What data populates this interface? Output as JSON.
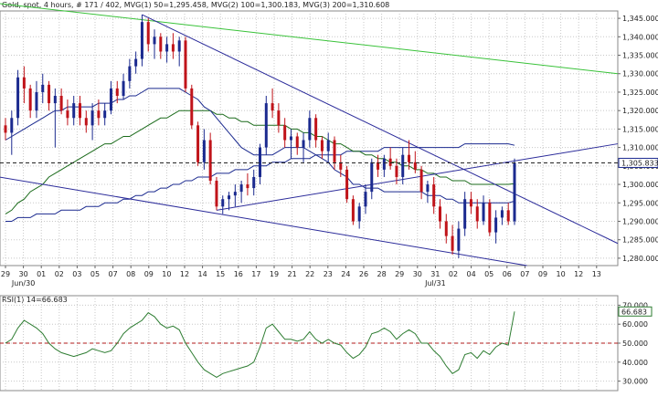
{
  "header": {
    "instrument": "Gold, spot",
    "timeframe": "4 hours",
    "bar_index": "# 171 / 402",
    "mvg1": "MVG(1) 50=1,295.458",
    "mvg2": "MVG(2) 100=1,300.183",
    "mvg3": "MVG(3) 200=1,310.608"
  },
  "rsi_header": "RSI(1) 14=66.683",
  "colors": {
    "up": "#1b2a8f",
    "down": "#c0141a",
    "mvg1": "#1b2a8f",
    "mvg2": "#1b6b1b",
    "mvg3": "#1b2a8f",
    "trend_upper_green": "#39c239",
    "trend_blue": "#2b2b9a",
    "rsi_line": "#2e7d32",
    "ref_line": "#b01818",
    "grid": "#c8c8c8"
  },
  "chart_data": [
    {
      "type": "candlestick",
      "title": "",
      "y_ticks": [
        "1,345.000",
        "1,340.000",
        "1,335.000",
        "1,330.000",
        "1,325.000",
        "1,320.000",
        "1,315.000",
        "1,310.000",
        "1,305.000",
        "1,300.000",
        "1,295.000",
        "1,290.000",
        "1,285.000",
        "1,280.000"
      ],
      "y_range": [
        1278,
        1347
      ],
      "x_ticks": [
        "29",
        "30",
        "01",
        "02",
        "03",
        "05",
        "07",
        "08",
        "09",
        "10",
        "12",
        "14",
        "15",
        "16",
        "17",
        "19",
        "21",
        "22",
        "23",
        "24",
        "26",
        "28",
        "29",
        "30",
        "31",
        "02",
        "04",
        "05",
        "06",
        "07",
        "09",
        "10",
        "12",
        "13"
      ],
      "month_labels": [
        {
          "label": "Jun/30",
          "after_tick": 1
        },
        {
          "label": "Jul/31",
          "after_tick": 24
        }
      ],
      "last_price_label": "1,305.833",
      "last_price": 1305.833,
      "candles": [
        [
          1316,
          1318,
          1312,
          1314
        ],
        [
          1314,
          1320,
          1308,
          1318
        ],
        [
          1318,
          1331,
          1316,
          1329
        ],
        [
          1329,
          1332,
          1322,
          1326
        ],
        [
          1326,
          1327,
          1318,
          1320
        ],
        [
          1320,
          1328,
          1318,
          1325
        ],
        [
          1325,
          1330,
          1322,
          1327
        ],
        [
          1327,
          1328,
          1320,
          1322
        ],
        [
          1322,
          1326,
          1310,
          1324
        ],
        [
          1324,
          1326,
          1319,
          1320
        ],
        [
          1320,
          1323,
          1316,
          1318
        ],
        [
          1318,
          1324,
          1316,
          1322
        ],
        [
          1322,
          1324,
          1316,
          1318
        ],
        [
          1318,
          1320,
          1314,
          1316
        ],
        [
          1316,
          1322,
          1312,
          1320
        ],
        [
          1320,
          1323,
          1316,
          1318
        ],
        [
          1318,
          1322,
          1316,
          1320
        ],
        [
          1320,
          1328,
          1319,
          1326
        ],
        [
          1326,
          1328,
          1322,
          1324
        ],
        [
          1324,
          1330,
          1323,
          1328
        ],
        [
          1328,
          1334,
          1326,
          1332
        ],
        [
          1332,
          1336,
          1330,
          1334
        ],
        [
          1334,
          1346,
          1332,
          1344
        ],
        [
          1344,
          1345,
          1336,
          1338
        ],
        [
          1338,
          1342,
          1334,
          1340
        ],
        [
          1340,
          1341,
          1334,
          1336
        ],
        [
          1336,
          1340,
          1333,
          1338
        ],
        [
          1338,
          1341,
          1334,
          1336
        ],
        [
          1336,
          1340,
          1332,
          1339
        ],
        [
          1339,
          1340,
          1325,
          1326
        ],
        [
          1326,
          1327,
          1315,
          1316
        ],
        [
          1316,
          1317,
          1305,
          1306
        ],
        [
          1306,
          1315,
          1304,
          1312
        ],
        [
          1312,
          1314,
          1300,
          1301
        ],
        [
          1301,
          1302,
          1293,
          1294
        ],
        [
          1294,
          1297,
          1292,
          1296
        ],
        [
          1296,
          1298,
          1293,
          1297
        ],
        [
          1297,
          1300,
          1294,
          1298
        ],
        [
          1298,
          1301,
          1295,
          1300
        ],
        [
          1300,
          1303,
          1297,
          1299
        ],
        [
          1299,
          1304,
          1297,
          1302
        ],
        [
          1302,
          1311,
          1300,
          1310
        ],
        [
          1310,
          1324,
          1308,
          1322
        ],
        [
          1322,
          1326,
          1318,
          1320
        ],
        [
          1320,
          1322,
          1314,
          1316
        ],
        [
          1316,
          1318,
          1310,
          1312
        ],
        [
          1312,
          1315,
          1307,
          1313
        ],
        [
          1313,
          1314,
          1308,
          1310
        ],
        [
          1310,
          1314,
          1306,
          1312
        ],
        [
          1312,
          1320,
          1310,
          1318
        ],
        [
          1318,
          1319,
          1310,
          1312
        ],
        [
          1312,
          1313,
          1307,
          1309
        ],
        [
          1309,
          1314,
          1306,
          1312
        ],
        [
          1312,
          1313,
          1304,
          1306
        ],
        [
          1306,
          1308,
          1302,
          1304
        ],
        [
          1304,
          1305,
          1295,
          1296
        ],
        [
          1296,
          1297,
          1289,
          1290
        ],
        [
          1290,
          1295,
          1288,
          1294
        ],
        [
          1294,
          1300,
          1292,
          1298
        ],
        [
          1298,
          1307,
          1296,
          1306
        ],
        [
          1306,
          1308,
          1302,
          1304
        ],
        [
          1304,
          1308,
          1302,
          1307
        ],
        [
          1307,
          1310,
          1304,
          1305
        ],
        [
          1305,
          1307,
          1300,
          1302
        ],
        [
          1302,
          1310,
          1300,
          1308
        ],
        [
          1308,
          1312,
          1304,
          1306
        ],
        [
          1306,
          1309,
          1303,
          1304
        ],
        [
          1304,
          1305,
          1296,
          1298
        ],
        [
          1298,
          1301,
          1295,
          1300
        ],
        [
          1300,
          1302,
          1292,
          1294
        ],
        [
          1294,
          1296,
          1288,
          1290
        ],
        [
          1290,
          1292,
          1284,
          1286
        ],
        [
          1286,
          1289,
          1281,
          1282
        ],
        [
          1282,
          1290,
          1280,
          1288
        ],
        [
          1288,
          1298,
          1286,
          1296
        ],
        [
          1296,
          1298,
          1292,
          1294
        ],
        [
          1294,
          1296,
          1288,
          1290
        ],
        [
          1290,
          1297,
          1289,
          1295
        ],
        [
          1295,
          1296,
          1286,
          1287
        ],
        [
          1287,
          1293,
          1284,
          1291
        ],
        [
          1291,
          1294,
          1289,
          1293
        ],
        [
          1293,
          1295,
          1289,
          1290
        ],
        [
          1290,
          1307,
          1289,
          1305.833
        ]
      ],
      "mvg1_50": [
        1312,
        1313,
        1314,
        1315,
        1316,
        1317,
        1318,
        1319,
        1320,
        1320,
        1321,
        1321,
        1321,
        1321,
        1321,
        1322,
        1322,
        1322,
        1323,
        1323,
        1324,
        1324,
        1325,
        1326,
        1326,
        1326,
        1326,
        1326,
        1326,
        1325,
        1324,
        1323,
        1321,
        1320,
        1318,
        1316,
        1314,
        1312,
        1310,
        1309,
        1308,
        1308,
        1308,
        1308,
        1309,
        1310,
        1310,
        1310,
        1310,
        1309,
        1308,
        1307,
        1306,
        1304,
        1303,
        1302,
        1300,
        1300,
        1299,
        1299,
        1299,
        1298,
        1298,
        1298,
        1298,
        1298,
        1298,
        1298,
        1297,
        1297,
        1297,
        1296,
        1296,
        1295,
        1295,
        1295,
        1295,
        1295,
        1295,
        1295,
        1295,
        1295,
        1295.458
      ],
      "mvg2_100": [
        1292,
        1293,
        1295,
        1296,
        1298,
        1299,
        1300,
        1302,
        1303,
        1304,
        1305,
        1306,
        1307,
        1308,
        1309,
        1310,
        1311,
        1311,
        1312,
        1313,
        1313,
        1314,
        1315,
        1316,
        1317,
        1318,
        1318,
        1319,
        1320,
        1320,
        1320,
        1320,
        1320,
        1320,
        1319,
        1319,
        1318,
        1318,
        1317,
        1317,
        1316,
        1316,
        1316,
        1316,
        1316,
        1316,
        1315,
        1315,
        1314,
        1314,
        1313,
        1313,
        1312,
        1311,
        1311,
        1310,
        1309,
        1309,
        1308,
        1308,
        1307,
        1307,
        1306,
        1306,
        1305,
        1305,
        1304,
        1304,
        1303,
        1303,
        1302,
        1302,
        1301,
        1301,
        1301,
        1300,
        1300,
        1300,
        1300,
        1300,
        1300,
        1300,
        1300.183
      ],
      "mvg3_200": [
        1290,
        1290,
        1291,
        1291,
        1291,
        1292,
        1292,
        1292,
        1292,
        1293,
        1293,
        1293,
        1293,
        1294,
        1294,
        1294,
        1295,
        1295,
        1295,
        1296,
        1296,
        1297,
        1297,
        1298,
        1298,
        1299,
        1299,
        1300,
        1300,
        1301,
        1301,
        1302,
        1302,
        1302,
        1303,
        1303,
        1303,
        1304,
        1304,
        1304,
        1305,
        1305,
        1305,
        1306,
        1306,
        1306,
        1307,
        1307,
        1307,
        1307,
        1308,
        1308,
        1308,
        1308,
        1308,
        1309,
        1309,
        1309,
        1309,
        1309,
        1309,
        1310,
        1310,
        1310,
        1310,
        1310,
        1310,
        1310,
        1310,
        1310,
        1310,
        1310,
        1310,
        1310,
        1311,
        1311,
        1311,
        1311,
        1311,
        1311,
        1311,
        1311,
        1310.608
      ],
      "trendlines": [
        {
          "name": "upper-green",
          "color": "#39c239",
          "from": [
            -1,
            1349
          ],
          "to": [
            100,
            1330
          ]
        },
        {
          "name": "descending-blue",
          "color": "#2b2b9a",
          "from": [
            22,
            1346
          ],
          "to": [
            100,
            1284
          ]
        },
        {
          "name": "lower-blue",
          "color": "#2b2b9a",
          "from": [
            -1,
            1302
          ],
          "to": [
            84,
            1278
          ]
        },
        {
          "name": "rising-blue",
          "color": "#2b2b9a",
          "from": [
            34,
            1293
          ],
          "to": [
            100,
            1311
          ]
        }
      ]
    },
    {
      "type": "line",
      "title": "",
      "y_ticks": [
        "70.000",
        "60.000",
        "50.000",
        "40.000",
        "30.000"
      ],
      "y_range": [
        25,
        75
      ],
      "reference_level": 50,
      "last_value_label": "66.683",
      "last_value": 66.683,
      "values": [
        50,
        52,
        58,
        62,
        60,
        58,
        55,
        50,
        47,
        45,
        44,
        43,
        44,
        45,
        47,
        46,
        45,
        46,
        50,
        55,
        58,
        60,
        62,
        66,
        64,
        60,
        58,
        59,
        57,
        50,
        45,
        40,
        36,
        34,
        32,
        34,
        35,
        36,
        37,
        38,
        40,
        48,
        58,
        60,
        56,
        52,
        52,
        51,
        52,
        56,
        52,
        50,
        52,
        50,
        49,
        45,
        42,
        44,
        48,
        55,
        56,
        58,
        56,
        52,
        55,
        57,
        55,
        50,
        50,
        46,
        43,
        38,
        34,
        36,
        44,
        45,
        42,
        46,
        44,
        48,
        50,
        49,
        66.683
      ]
    }
  ]
}
